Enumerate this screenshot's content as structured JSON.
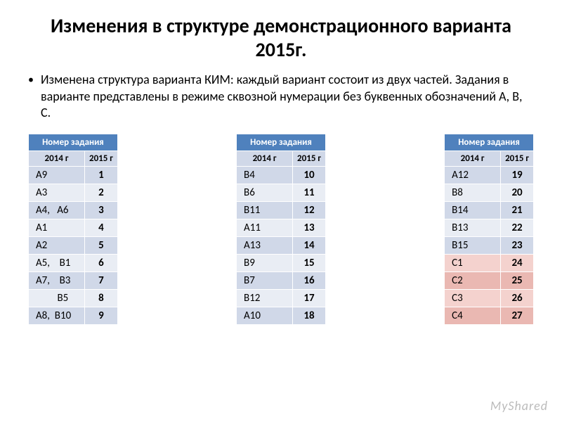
{
  "title": "Изменения в структуре демонстрационного варианта 2015г.",
  "body": "Изменена структура варианта КИМ: каждый вариант состоит из двух частей. Задания в варианте представлены в режиме сквозной нумерации без буквенных обозначений А, В, С.",
  "table_header": "Номер задания",
  "sub_left": "2014 г",
  "sub_right": "2015 г",
  "colors": {
    "header_bg": "#4f81bd",
    "sub_bg": "#d0d8e8",
    "alt1": "#d0d8e8",
    "alt2": "#e9edf4",
    "c_light": "#f4d2ce",
    "c_dark": "#eab8b2"
  },
  "tables": [
    {
      "rows": [
        {
          "old": "А9",
          "new": "1",
          "bg": "alt1"
        },
        {
          "old": "А3",
          "new": "2",
          "bg": "alt2"
        },
        {
          "old": "А4,   А6",
          "new": "3",
          "bg": "alt1"
        },
        {
          "old": "А1",
          "new": "4",
          "bg": "alt2"
        },
        {
          "old": "А2",
          "new": "5",
          "bg": "alt1"
        },
        {
          "old": "А5,    В1",
          "new": "6",
          "bg": "alt2"
        },
        {
          "old": "А7,    В3",
          "new": "7",
          "bg": "alt1"
        },
        {
          "old": "         В5",
          "new": "8",
          "bg": "alt2"
        },
        {
          "old": "А8,  В10",
          "new": "9",
          "bg": "alt1"
        }
      ]
    },
    {
      "rows": [
        {
          "old": "В4",
          "new": "10",
          "bg": "alt1"
        },
        {
          "old": "В6",
          "new": "11",
          "bg": "alt2"
        },
        {
          "old": "В11",
          "new": "12",
          "bg": "alt1"
        },
        {
          "old": "А11",
          "new": "13",
          "bg": "alt2"
        },
        {
          "old": "А13",
          "new": "14",
          "bg": "alt1"
        },
        {
          "old": "В9",
          "new": "15",
          "bg": "alt2"
        },
        {
          "old": "В7",
          "new": "16",
          "bg": "alt1"
        },
        {
          "old": "В12",
          "new": "17",
          "bg": "alt2"
        },
        {
          "old": "А10",
          "new": "18",
          "bg": "alt1"
        }
      ]
    },
    {
      "rows": [
        {
          "old": "А12",
          "new": "19",
          "bg": "alt1"
        },
        {
          "old": "В8",
          "new": "20",
          "bg": "alt2"
        },
        {
          "old": "В14",
          "new": "21",
          "bg": "alt1"
        },
        {
          "old": "В13",
          "new": "22",
          "bg": "alt2"
        },
        {
          "old": "В15",
          "new": "23",
          "bg": "alt1"
        },
        {
          "old": "С1",
          "new": "24",
          "bg": "c_light"
        },
        {
          "old": "С2",
          "new": "25",
          "bg": "c_dark"
        },
        {
          "old": "С3",
          "new": "26",
          "bg": "c_light"
        },
        {
          "old": "С4",
          "new": "27",
          "bg": "c_dark"
        }
      ]
    }
  ],
  "watermark": "MyShared"
}
